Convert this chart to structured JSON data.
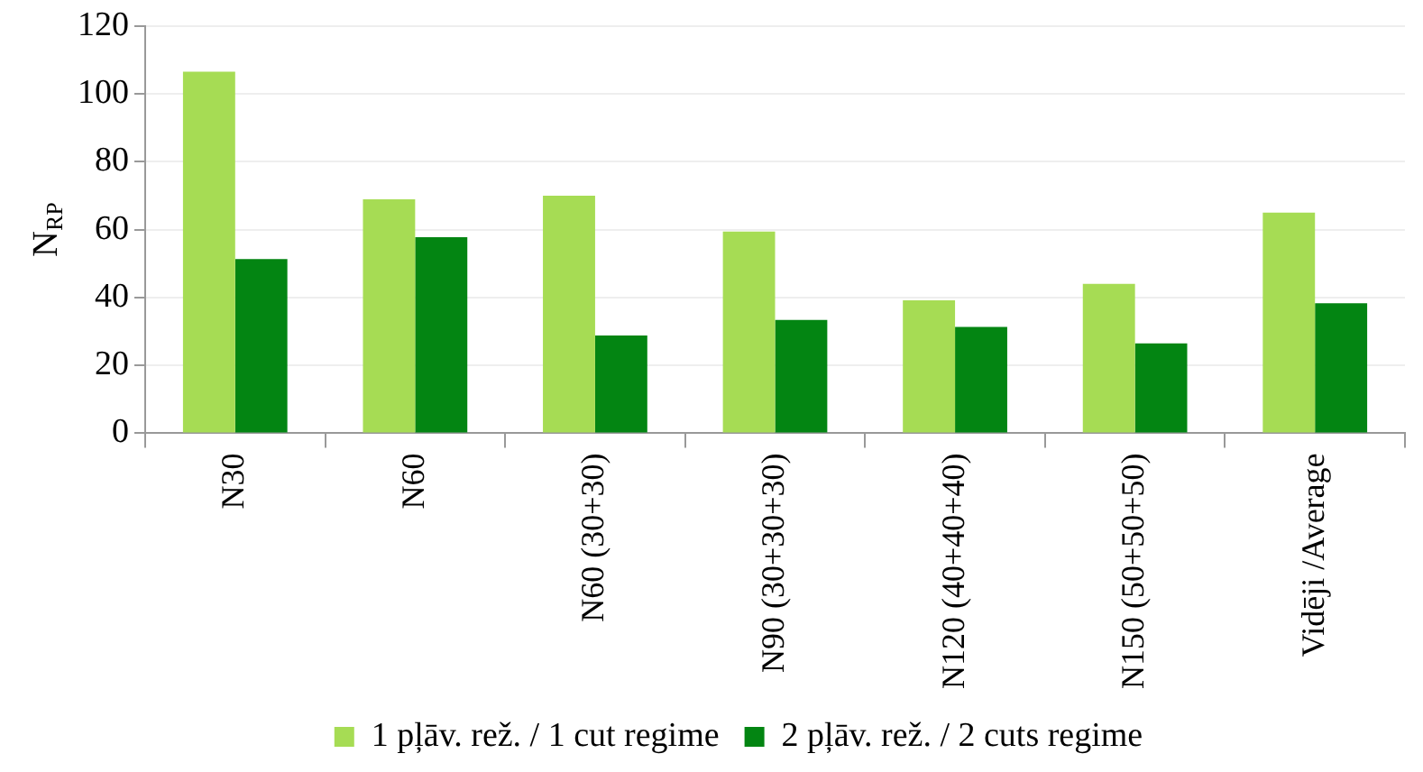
{
  "chart_data": {
    "type": "bar",
    "ylabel": "N$_{RP}$",
    "categories": [
      "N30",
      "N60",
      "N60 (30+30)",
      "N90 (30+30+30)",
      "N120 (40+40+40)",
      "N150 (50+50+50)",
      "Vidēji /Average"
    ],
    "series": [
      {
        "name": "1 pļāv. rež. / 1 cut regime",
        "color": "#a6dc54",
        "values": [
          106.5,
          68.9,
          70,
          59.4,
          39.2,
          44,
          65
        ]
      },
      {
        "name": "2 pļāv. rež. / 2 cuts regime",
        "color": "#038512",
        "values": [
          51.3,
          57.8,
          28.8,
          33.4,
          31.3,
          26.5,
          38.3
        ]
      }
    ],
    "ylim": [
      0,
      120
    ],
    "yticks": [
      0,
      20,
      40,
      60,
      80,
      100,
      120
    ],
    "grid": "y",
    "legend": "bottom"
  }
}
